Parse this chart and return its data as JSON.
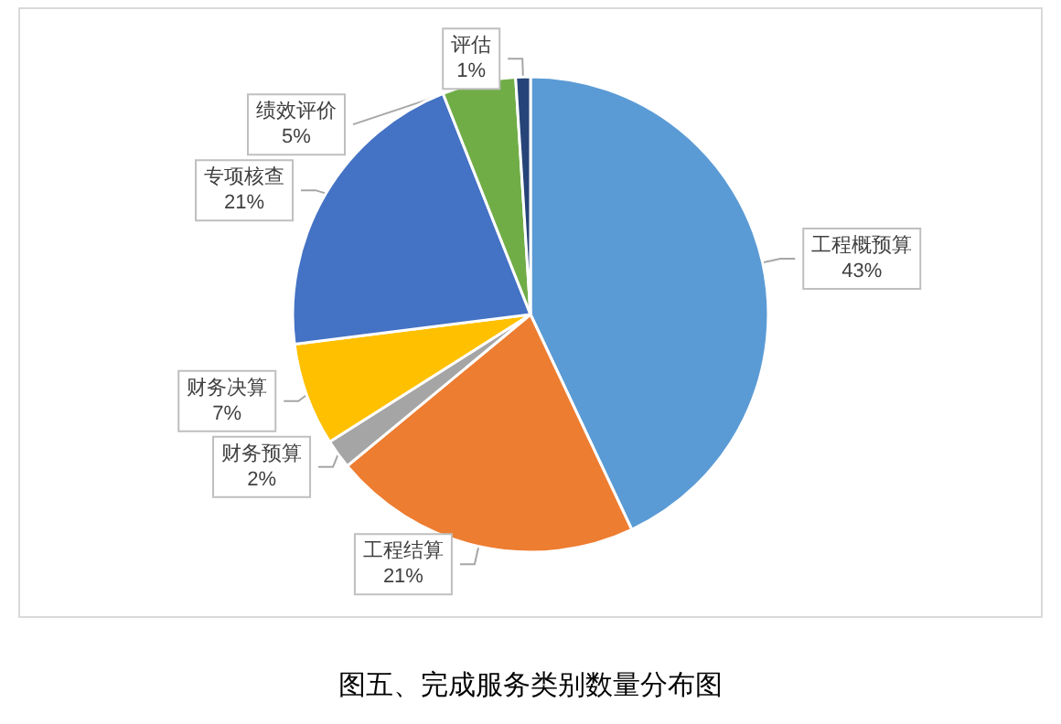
{
  "chart_data": {
    "type": "pie",
    "title": "图五、完成服务类别数量分布图",
    "categories": [
      "工程概预算",
      "工程结算",
      "财务预算",
      "财务决算",
      "专项核查",
      "绩效评价",
      "评估"
    ],
    "values": [
      43,
      21,
      2,
      7,
      21,
      5,
      1
    ],
    "colors": [
      "#5b9bd5",
      "#ed7d31",
      "#a5a5a5",
      "#ffc000",
      "#4472c4",
      "#70ad47",
      "#264478"
    ],
    "value_labels": [
      "43%",
      "21%",
      "2%",
      "7%",
      "21%",
      "5%",
      "1%"
    ],
    "legend": false
  }
}
